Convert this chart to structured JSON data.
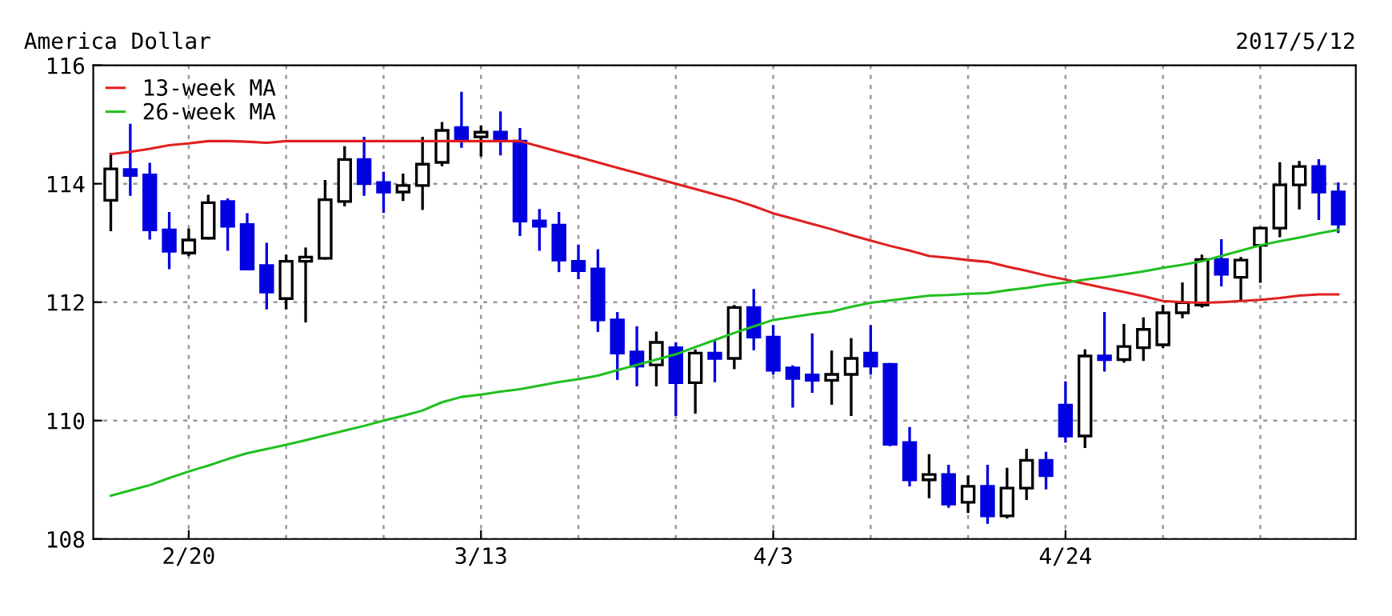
{
  "chart_data": {
    "type": "candlestick",
    "title": "America Dollar",
    "subtitle": "2017/5/12",
    "categories": [
      null,
      null,
      null,
      null,
      "2/20",
      null,
      null,
      null,
      null,
      null,
      null,
      null,
      null,
      null,
      null,
      null,
      null,
      null,
      null,
      "3/13",
      null,
      null,
      null,
      null,
      null,
      null,
      null,
      null,
      null,
      null,
      null,
      null,
      null,
      null,
      "4/3",
      null,
      null,
      null,
      null,
      null,
      null,
      null,
      null,
      null,
      null,
      null,
      null,
      null,
      null,
      "4/24",
      null,
      null,
      null,
      null,
      null,
      null,
      null,
      null,
      null,
      null,
      null,
      null,
      null,
      null
    ],
    "ohlc": [
      [
        113.72,
        114.5,
        113.22,
        114.25
      ],
      [
        114.24,
        114.99,
        113.82,
        114.14
      ],
      [
        114.15,
        114.33,
        113.08,
        113.22
      ],
      [
        113.22,
        113.5,
        112.58,
        112.86
      ],
      [
        112.83,
        113.22,
        112.8,
        113.05
      ],
      [
        113.08,
        113.79,
        113.08,
        113.68
      ],
      [
        113.7,
        113.73,
        112.89,
        113.28
      ],
      [
        113.31,
        113.48,
        112.56,
        112.56
      ],
      [
        112.62,
        112.98,
        111.9,
        112.17
      ],
      [
        112.06,
        112.78,
        111.9,
        112.69
      ],
      [
        112.69,
        112.9,
        111.68,
        112.76
      ],
      [
        112.74,
        114.04,
        112.74,
        113.73
      ],
      [
        113.7,
        114.61,
        113.64,
        114.41
      ],
      [
        114.41,
        114.77,
        113.82,
        114.0
      ],
      [
        114.02,
        114.18,
        113.53,
        113.86
      ],
      [
        113.86,
        114.15,
        113.73,
        113.97
      ],
      [
        113.97,
        114.77,
        113.58,
        114.33
      ],
      [
        114.36,
        115.02,
        114.32,
        114.9
      ],
      [
        114.95,
        115.53,
        114.63,
        114.75
      ],
      [
        114.79,
        114.96,
        114.48,
        114.87
      ],
      [
        114.87,
        115.2,
        114.5,
        114.72
      ],
      [
        114.72,
        114.92,
        113.14,
        113.37
      ],
      [
        113.37,
        113.55,
        112.89,
        113.28
      ],
      [
        113.3,
        113.5,
        112.53,
        112.71
      ],
      [
        112.69,
        112.95,
        112.41,
        112.53
      ],
      [
        112.56,
        112.87,
        111.52,
        111.7
      ],
      [
        111.7,
        111.81,
        110.71,
        111.14
      ],
      [
        111.16,
        111.57,
        110.6,
        110.92
      ],
      [
        110.94,
        111.48,
        110.6,
        111.32
      ],
      [
        111.23,
        111.3,
        110.1,
        110.64
      ],
      [
        110.64,
        111.18,
        110.14,
        111.14
      ],
      [
        111.14,
        111.34,
        110.67,
        111.05
      ],
      [
        111.05,
        111.93,
        110.89,
        111.91
      ],
      [
        111.91,
        112.2,
        111.21,
        111.41
      ],
      [
        111.41,
        111.59,
        110.8,
        110.85
      ],
      [
        110.89,
        110.91,
        110.24,
        110.71
      ],
      [
        110.77,
        111.45,
        110.49,
        110.68
      ],
      [
        110.68,
        111.16,
        110.29,
        110.78
      ],
      [
        110.78,
        111.37,
        110.1,
        111.05
      ],
      [
        111.14,
        111.59,
        110.8,
        110.92
      ],
      [
        110.95,
        110.95,
        109.59,
        109.6
      ],
      [
        109.63,
        109.87,
        108.91,
        109.0
      ],
      [
        109.0,
        109.41,
        108.71,
        109.09
      ],
      [
        109.09,
        109.23,
        108.55,
        108.59
      ],
      [
        108.62,
        109.05,
        108.46,
        108.89
      ],
      [
        108.89,
        109.23,
        108.28,
        108.39
      ],
      [
        108.39,
        109.18,
        108.37,
        108.86
      ],
      [
        108.86,
        109.5,
        108.68,
        109.33
      ],
      [
        109.33,
        109.45,
        108.86,
        109.07
      ],
      [
        110.26,
        110.64,
        109.65,
        109.74
      ],
      [
        109.74,
        111.18,
        109.56,
        111.09
      ],
      [
        111.09,
        111.81,
        110.85,
        111.03
      ],
      [
        111.03,
        111.61,
        111.0,
        111.25
      ],
      [
        111.23,
        111.72,
        111.03,
        111.54
      ],
      [
        111.28,
        111.93,
        111.25,
        111.82
      ],
      [
        111.82,
        112.31,
        111.75,
        111.99
      ],
      [
        111.95,
        112.78,
        111.93,
        112.72
      ],
      [
        112.72,
        113.04,
        112.29,
        112.47
      ],
      [
        112.42,
        112.74,
        112.06,
        112.71
      ],
      [
        112.96,
        113.25,
        112.35,
        113.25
      ],
      [
        113.25,
        114.34,
        113.12,
        113.98
      ],
      [
        113.98,
        114.36,
        113.59,
        114.29
      ],
      [
        114.29,
        114.39,
        113.41,
        113.86
      ],
      [
        113.86,
        114.0,
        113.19,
        113.32
      ]
    ],
    "colors": [
      "#ffffff",
      "#0000e0",
      "#0000e0",
      "#0000e0",
      "#ffffff",
      "#ffffff",
      "#0000e0",
      "#0000e0",
      "#0000e0",
      "#ffffff",
      "#ffffff",
      "#ffffff",
      "#ffffff",
      "#0000e0",
      "#0000e0",
      "#ffffff",
      "#ffffff",
      "#ffffff",
      "#0000e0",
      "#ffffff",
      "#0000e0",
      "#0000e0",
      "#0000e0",
      "#0000e0",
      "#0000e0",
      "#0000e0",
      "#0000e0",
      "#0000e0",
      "#ffffff",
      "#0000e0",
      "#ffffff",
      "#0000e0",
      "#ffffff",
      "#0000e0",
      "#0000e0",
      "#0000e0",
      "#0000e0",
      "#ffffff",
      "#ffffff",
      "#0000e0",
      "#0000e0",
      "#0000e0",
      "#ffffff",
      "#0000e0",
      "#ffffff",
      "#0000e0",
      "#ffffff",
      "#ffffff",
      "#0000e0",
      "#0000e0",
      "#ffffff",
      "#0000e0",
      "#ffffff",
      "#ffffff",
      "#ffffff",
      "#ffffff",
      "#ffffff",
      "#0000e0",
      "#ffffff",
      "#ffffff",
      "#ffffff",
      "#ffffff",
      "#0000e0",
      "#0000e0"
    ],
    "series": [
      {
        "name": "13-week MA",
        "type": "line",
        "color": "#e02020",
        "values": [
          114.5,
          114.54,
          114.59,
          114.65,
          114.68,
          114.72,
          114.72,
          114.71,
          114.69,
          114.72,
          114.72,
          114.72,
          114.72,
          114.72,
          114.72,
          114.72,
          114.72,
          114.72,
          114.72,
          114.72,
          114.72,
          114.72,
          114.63,
          114.54,
          114.45,
          114.36,
          114.27,
          114.18,
          114.09,
          114.0,
          113.91,
          113.82,
          113.73,
          113.62,
          113.5,
          113.41,
          113.32,
          113.23,
          113.13,
          113.04,
          112.95,
          112.87,
          112.78,
          112.75,
          112.71,
          112.68,
          112.6,
          112.53,
          112.45,
          112.38,
          112.31,
          112.24,
          112.17,
          112.1,
          112.02,
          112.0,
          111.99,
          112.0,
          112.02,
          112.04,
          112.07,
          112.11,
          112.13,
          112.13
        ]
      },
      {
        "name": "26-week MA",
        "type": "line",
        "color": "#20c020",
        "values": [
          108.73,
          108.82,
          108.91,
          109.03,
          109.14,
          109.24,
          109.35,
          109.45,
          109.52,
          109.59,
          109.67,
          109.75,
          109.83,
          109.91,
          110.0,
          110.08,
          110.17,
          110.31,
          110.4,
          110.44,
          110.49,
          110.53,
          110.59,
          110.65,
          110.7,
          110.76,
          110.85,
          110.94,
          111.03,
          111.12,
          111.24,
          111.36,
          111.48,
          111.59,
          111.7,
          111.75,
          111.8,
          111.84,
          111.92,
          111.99,
          112.03,
          112.07,
          112.11,
          112.12,
          112.14,
          112.15,
          112.2,
          112.24,
          112.29,
          112.33,
          112.38,
          112.42,
          112.47,
          112.52,
          112.58,
          112.63,
          112.69,
          112.78,
          112.87,
          112.96,
          113.03,
          113.09,
          113.16,
          113.22
        ]
      }
    ],
    "ylim": [
      108,
      116
    ],
    "yticks": [
      108,
      110,
      112,
      114,
      116
    ],
    "grid": true,
    "legend": "top left"
  }
}
